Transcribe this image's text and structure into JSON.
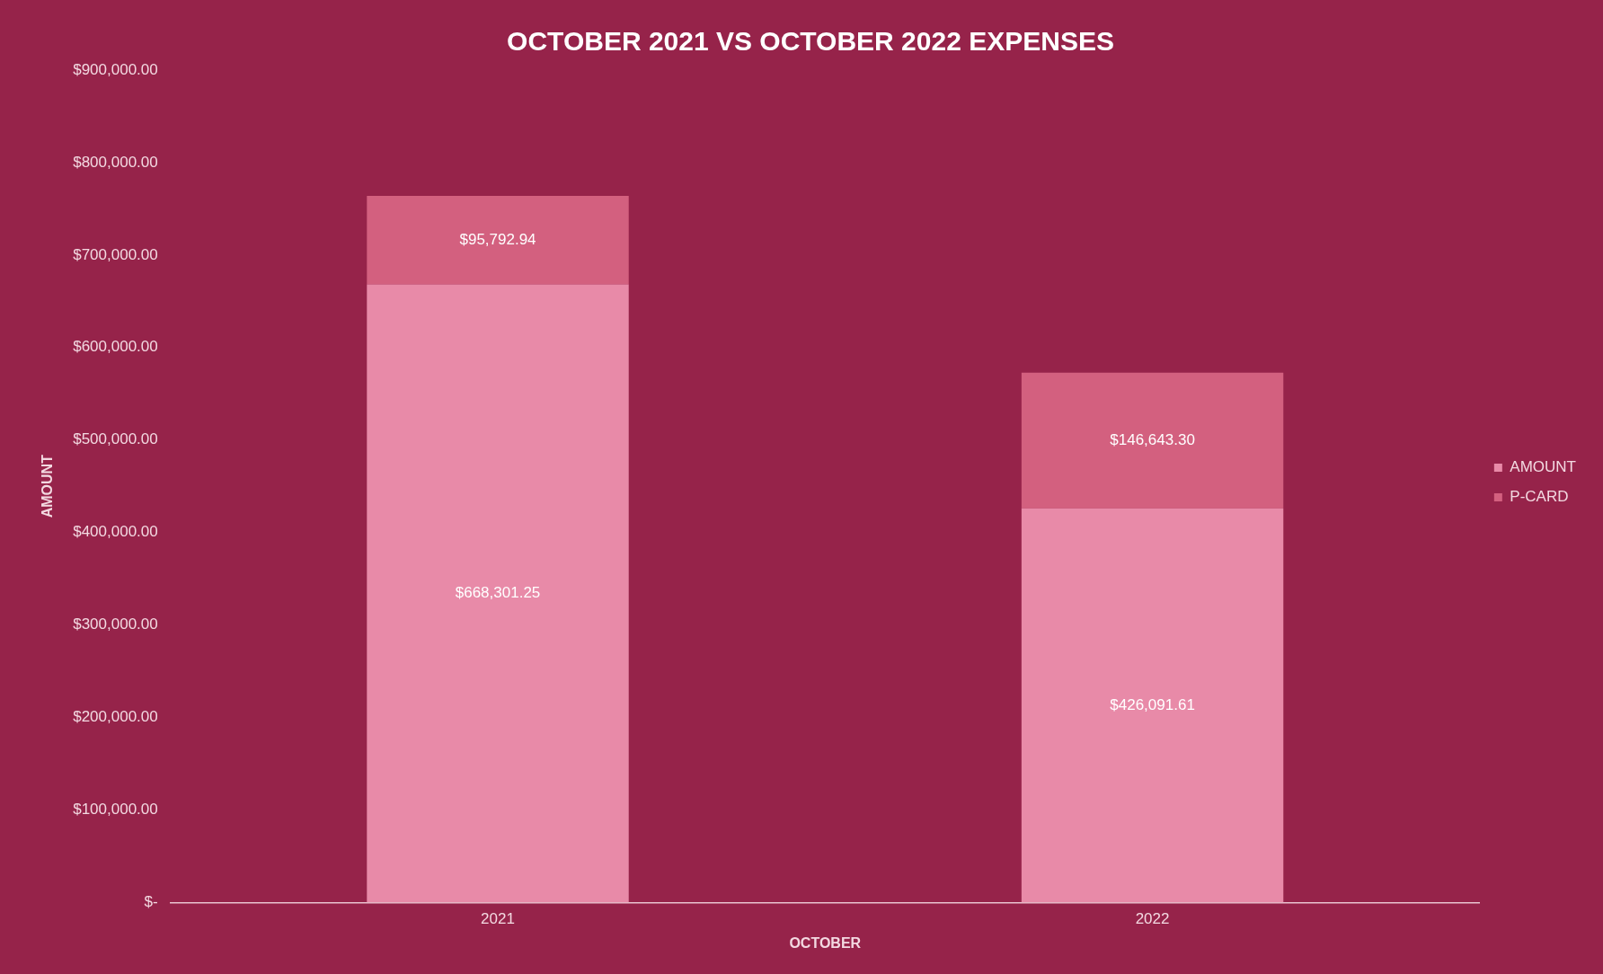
{
  "chart_data": {
    "type": "bar",
    "title": "OCTOBER 2021 VS OCTOBER 2022 EXPENSES",
    "xlabel": "OCTOBER",
    "ylabel": "AMOUNT",
    "categories": [
      "2021",
      "2022"
    ],
    "stacked": true,
    "series": [
      {
        "name": "AMOUNT",
        "color": "#e88aa8",
        "values": [
          668301.25,
          426091.61
        ],
        "value_labels": [
          "$668,301.25",
          "$426,091.61"
        ]
      },
      {
        "name": "P-CARD",
        "color": "#d3607f",
        "values": [
          95792.94,
          146643.3
        ],
        "value_labels": [
          "$95,792.94",
          "$146,643.30"
        ]
      }
    ],
    "ylim": [
      0,
      900000
    ],
    "yticks": [
      {
        "value": 0,
        "label": "$-"
      },
      {
        "value": 100000,
        "label": "$100,000.00"
      },
      {
        "value": 200000,
        "label": "$200,000.00"
      },
      {
        "value": 300000,
        "label": "$300,000.00"
      },
      {
        "value": 400000,
        "label": "$400,000.00"
      },
      {
        "value": 500000,
        "label": "$500,000.00"
      },
      {
        "value": 600000,
        "label": "$600,000.00"
      },
      {
        "value": 700000,
        "label": "$700,000.00"
      },
      {
        "value": 800000,
        "label": "$800,000.00"
      },
      {
        "value": 900000,
        "label": "$900,000.00"
      }
    ],
    "grid": false,
    "legend": "right"
  }
}
